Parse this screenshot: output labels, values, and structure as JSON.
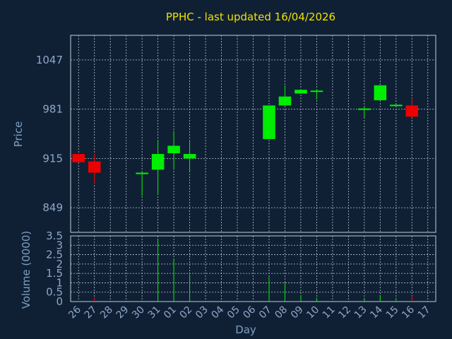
{
  "chart_data": [
    {
      "type": "candlestick",
      "title": "PPHC - last updated 16/04/2026",
      "ylabel": "Price",
      "ylim": [
        816,
        1080
      ],
      "yticks": [
        849,
        915,
        981,
        1047
      ],
      "grid": true,
      "x": [
        "26",
        "27",
        "28",
        "29",
        "30",
        "31",
        "01",
        "02",
        "03",
        "04",
        "05",
        "06",
        "07",
        "08",
        "09",
        "10",
        "11",
        "12",
        "13",
        "14",
        "15",
        "16",
        "17"
      ],
      "ohlc": [
        {
          "x": "26",
          "open": 921,
          "high": 921,
          "low": 910,
          "close": 910
        },
        {
          "x": "27",
          "open": 911,
          "high": 921,
          "low": 881,
          "close": 896
        },
        {
          "x": "30",
          "open": 894,
          "high": 894,
          "low": 865,
          "close": 896
        },
        {
          "x": "31",
          "open": 900,
          "high": 940,
          "low": 867,
          "close": 921
        },
        {
          "x": "01",
          "open": 922,
          "high": 952,
          "low": 900,
          "close": 932
        },
        {
          "x": "02",
          "open": 915,
          "high": 940,
          "low": 898,
          "close": 921
        },
        {
          "x": "07",
          "open": 941,
          "high": 986,
          "low": 941,
          "close": 986
        },
        {
          "x": "08",
          "open": 986,
          "high": 1013,
          "low": 986,
          "close": 998
        },
        {
          "x": "09",
          "open": 1002,
          "high": 1008,
          "low": 1002,
          "close": 1007
        },
        {
          "x": "10",
          "open": 1005,
          "high": 1008,
          "low": 994,
          "close": 1006
        },
        {
          "x": "13",
          "open": 980,
          "high": 984,
          "low": 970,
          "close": 982
        },
        {
          "x": "14",
          "open": 993,
          "high": 1013,
          "low": 993,
          "close": 1013
        },
        {
          "x": "15",
          "open": 985,
          "high": 987,
          "low": 985,
          "close": 987
        },
        {
          "x": "16",
          "open": 986,
          "high": 996,
          "low": 970,
          "close": 971
        }
      ],
      "colors": {
        "up": "#00ee00",
        "down": "#ee0000"
      }
    },
    {
      "type": "bar",
      "ylabel": "Volume (0000)",
      "xlabel": "Day",
      "ylim": [
        0,
        3.5
      ],
      "yticks": [
        "0",
        "0.5",
        "1",
        "1.5",
        "2",
        "2.5",
        "3",
        "3.5"
      ],
      "x": [
        "26",
        "27",
        "28",
        "29",
        "30",
        "31",
        "01",
        "02",
        "03",
        "04",
        "05",
        "06",
        "07",
        "08",
        "09",
        "10",
        "11",
        "12",
        "13",
        "14",
        "15",
        "16",
        "17"
      ],
      "values": [
        0.02,
        0.2,
        0,
        0,
        0.05,
        3.3,
        2.3,
        1.45,
        0,
        0,
        0,
        0,
        1.3,
        1.0,
        0.35,
        0.2,
        0,
        0,
        0.15,
        0.35,
        0.1,
        0.3,
        0
      ],
      "bar_colors": [
        "red",
        "red",
        "green",
        "green",
        "green",
        "green",
        "green",
        "green",
        "green",
        "green",
        "green",
        "green",
        "green",
        "green",
        "green",
        "green",
        "green",
        "green",
        "green",
        "green",
        "green",
        "red",
        "green"
      ]
    }
  ]
}
